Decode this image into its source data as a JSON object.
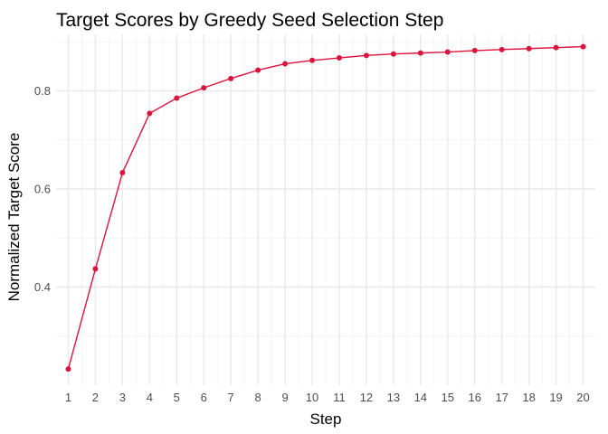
{
  "chart_data": {
    "type": "line",
    "title": "Target Scores by Greedy Seed Selection Step",
    "xlabel": "Step",
    "ylabel": "Normalized Target Score",
    "x": [
      1,
      2,
      3,
      4,
      5,
      6,
      7,
      8,
      9,
      10,
      11,
      12,
      13,
      14,
      15,
      16,
      17,
      18,
      19,
      20
    ],
    "series": [
      {
        "values": [
          0.233,
          0.437,
          0.633,
          0.754,
          0.785,
          0.806,
          0.825,
          0.842,
          0.855,
          0.862,
          0.867,
          0.872,
          0.875,
          0.877,
          0.879,
          0.882,
          0.884,
          0.886,
          0.888,
          0.89
        ]
      }
    ],
    "x_ticks": [
      "1",
      "2",
      "3",
      "4",
      "5",
      "6",
      "7",
      "8",
      "9",
      "10",
      "11",
      "12",
      "13",
      "14",
      "15",
      "16",
      "17",
      "18",
      "19",
      "20"
    ],
    "y_ticks": [
      0.4,
      0.6,
      0.8
    ],
    "y_tick_labels": [
      "0.4",
      "0.6",
      "0.8"
    ],
    "xlim": [
      0.55,
      20.45
    ],
    "ylim": [
      0.2,
      0.915
    ],
    "grid": true,
    "legend": "none",
    "colors": {
      "line": "#DC143C",
      "point": "#DC143C",
      "grid_major": "#EBEBEB",
      "grid_minor": "#F4F4F4"
    }
  }
}
